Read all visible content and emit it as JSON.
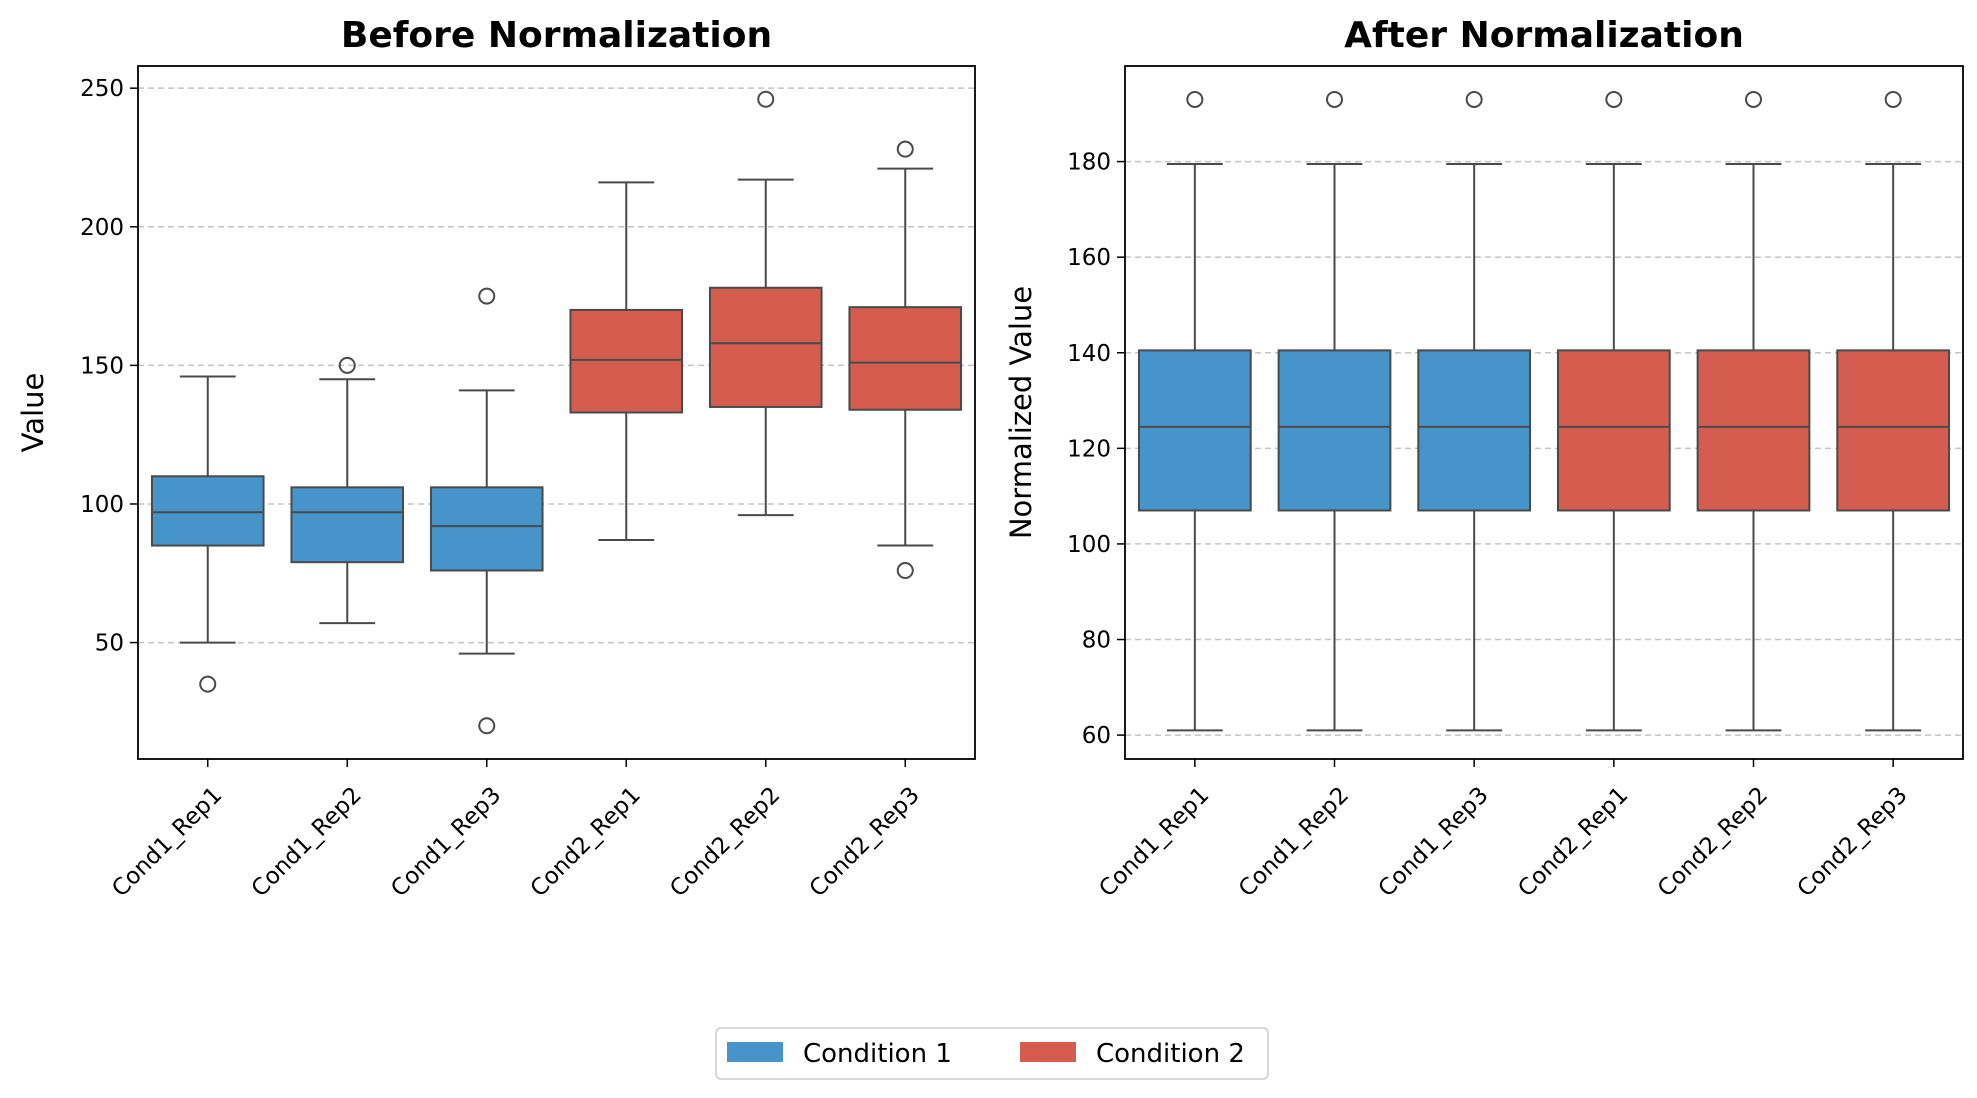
{
  "chart_data": [
    {
      "type": "box",
      "title": "Before Normalization",
      "xlabel": "",
      "ylabel": "Value",
      "ylim": [
        8,
        258
      ],
      "yticks": [
        50,
        100,
        150,
        200,
        250
      ],
      "grid": "y-dashed",
      "categories": [
        "Cond1_Rep1",
        "Cond1_Rep2",
        "Cond1_Rep3",
        "Cond2_Rep1",
        "Cond2_Rep2",
        "Cond2_Rep3"
      ],
      "groups": [
        "Condition 1",
        "Condition 1",
        "Condition 1",
        "Condition 2",
        "Condition 2",
        "Condition 2"
      ],
      "boxes": [
        {
          "whisker_low": 50,
          "q1": 85,
          "median": 97,
          "q3": 110,
          "whisker_high": 146,
          "outliers": [
            35
          ]
        },
        {
          "whisker_low": 57,
          "q1": 79,
          "median": 97,
          "q3": 106,
          "whisker_high": 145,
          "outliers": [
            150
          ]
        },
        {
          "whisker_low": 46,
          "q1": 76,
          "median": 92,
          "q3": 106,
          "whisker_high": 141,
          "outliers": [
            175,
            20
          ]
        },
        {
          "whisker_low": 87,
          "q1": 133,
          "median": 152,
          "q3": 170,
          "whisker_high": 216,
          "outliers": []
        },
        {
          "whisker_low": 96,
          "q1": 135,
          "median": 158,
          "q3": 178,
          "whisker_high": 217,
          "outliers": [
            246
          ]
        },
        {
          "whisker_low": 85,
          "q1": 134,
          "median": 151,
          "q3": 171,
          "whisker_high": 221,
          "outliers": [
            228,
            76
          ]
        }
      ]
    },
    {
      "type": "box",
      "title": "After Normalization",
      "xlabel": "",
      "ylabel": "Normalized Value",
      "ylim": [
        55,
        200
      ],
      "yticks": [
        60,
        80,
        100,
        120,
        140,
        160,
        180
      ],
      "grid": "y-dashed",
      "categories": [
        "Cond1_Rep1",
        "Cond1_Rep2",
        "Cond1_Rep3",
        "Cond2_Rep1",
        "Cond2_Rep2",
        "Cond2_Rep3"
      ],
      "groups": [
        "Condition 1",
        "Condition 1",
        "Condition 1",
        "Condition 2",
        "Condition 2",
        "Condition 2"
      ],
      "boxes": [
        {
          "whisker_low": 61,
          "q1": 107,
          "median": 124.5,
          "q3": 140.5,
          "whisker_high": 179.5,
          "outliers": [
            193
          ]
        },
        {
          "whisker_low": 61,
          "q1": 107,
          "median": 124.5,
          "q3": 140.5,
          "whisker_high": 179.5,
          "outliers": [
            193
          ]
        },
        {
          "whisker_low": 61,
          "q1": 107,
          "median": 124.5,
          "q3": 140.5,
          "whisker_high": 179.5,
          "outliers": [
            193
          ]
        },
        {
          "whisker_low": 61,
          "q1": 107,
          "median": 124.5,
          "q3": 140.5,
          "whisker_high": 179.5,
          "outliers": [
            193
          ]
        },
        {
          "whisker_low": 61,
          "q1": 107,
          "median": 124.5,
          "q3": 140.5,
          "whisker_high": 179.5,
          "outliers": [
            193
          ]
        },
        {
          "whisker_low": 61,
          "q1": 107,
          "median": 124.5,
          "q3": 140.5,
          "whisker_high": 179.5,
          "outliers": [
            193
          ]
        }
      ]
    }
  ],
  "legend": {
    "placement": "bottom-center",
    "items": [
      {
        "label": "Condition 1",
        "color": "#4694c9"
      },
      {
        "label": "Condition 2",
        "color": "#d45d50"
      }
    ]
  },
  "colors": {
    "Condition 1": "#4694c9",
    "Condition 2": "#d45d50",
    "line": "#4a4a4a",
    "grid": "#c4c4c4"
  }
}
